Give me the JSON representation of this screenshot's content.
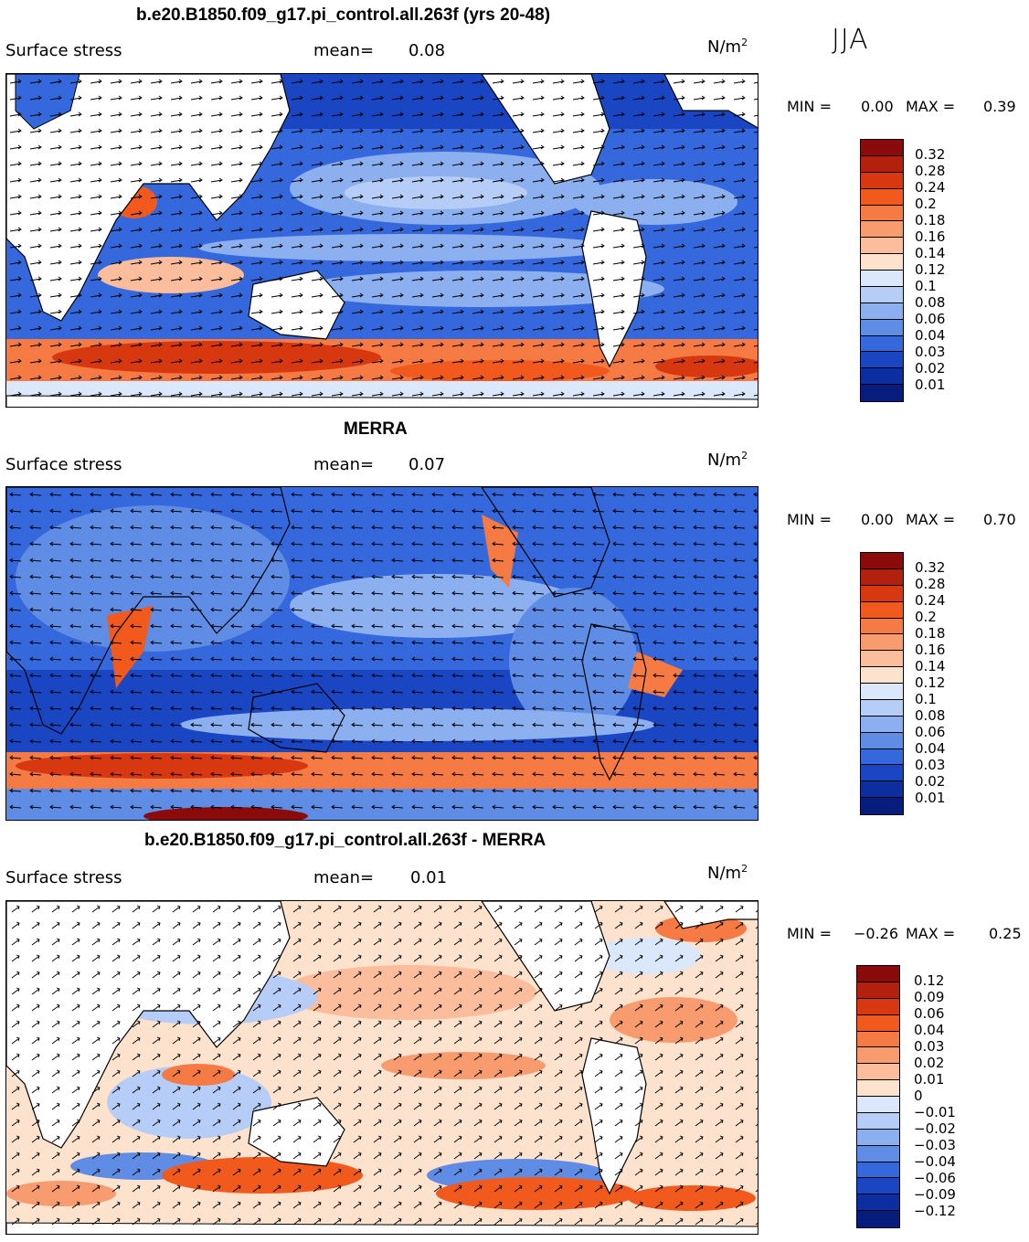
{
  "season": "JJA",
  "panels": [
    {
      "title": "b.e20.B1850.f09_g17.pi_control.all.263f (yrs 20-48)",
      "variable": "Surface stress",
      "mean_label": "mean=",
      "mean_value": "0.08",
      "unit": "N/m",
      "unit_sup": "2",
      "min_label": "MIN =",
      "min_value": "0.00",
      "max_label": "MAX =",
      "max_value": "0.39",
      "colorbar": {
        "labels": [
          "0.32",
          "0.28",
          "0.24",
          "0.2",
          "0.18",
          "0.16",
          "0.14",
          "0.12",
          "0.1",
          "0.08",
          "0.06",
          "0.04",
          "0.03",
          "0.02",
          "0.01"
        ],
        "colors": [
          "#8b0a0a",
          "#b3200d",
          "#d8380f",
          "#f25a1d",
          "#f57a44",
          "#f89b6e",
          "#fbbd9c",
          "#fde2cd",
          "#dbe8fb",
          "#b6cdf7",
          "#8bafef",
          "#5f8de5",
          "#3568dc",
          "#1a46c4",
          "#0d2ea0",
          "#071d7d"
        ]
      }
    },
    {
      "title": "MERRA",
      "variable": "Surface stress",
      "mean_label": "mean=",
      "mean_value": "0.07",
      "unit": "N/m",
      "unit_sup": "2",
      "min_label": "MIN =",
      "min_value": "0.00",
      "max_label": "MAX =",
      "max_value": "0.70",
      "colorbar": {
        "labels": [
          "0.32",
          "0.28",
          "0.24",
          "0.2",
          "0.18",
          "0.16",
          "0.14",
          "0.12",
          "0.1",
          "0.08",
          "0.06",
          "0.04",
          "0.03",
          "0.02",
          "0.01"
        ],
        "colors": [
          "#8b0a0a",
          "#b3200d",
          "#d8380f",
          "#f25a1d",
          "#f57a44",
          "#f89b6e",
          "#fbbd9c",
          "#fde2cd",
          "#dbe8fb",
          "#b6cdf7",
          "#8bafef",
          "#5f8de5",
          "#3568dc",
          "#1a46c4",
          "#0d2ea0",
          "#071d7d"
        ]
      }
    },
    {
      "title": "b.e20.B1850.f09_g17.pi_control.all.263f - MERRA",
      "variable": "Surface stress",
      "mean_label": "mean=",
      "mean_value": "0.01",
      "unit": "N/m",
      "unit_sup": "2",
      "min_label": "MIN =",
      "min_value": "−0.26",
      "max_label": "MAX =",
      "max_value": "0.25",
      "colorbar": {
        "labels": [
          "0.12",
          "0.09",
          "0.06",
          "0.04",
          "0.03",
          "0.02",
          "0.01",
          "0",
          "−0.01",
          "−0.02",
          "−0.03",
          "−0.04",
          "−0.06",
          "−0.09",
          "−0.12"
        ],
        "colors": [
          "#8b0a0a",
          "#b3200d",
          "#d8380f",
          "#f25a1d",
          "#f57a44",
          "#f89b6e",
          "#fbbd9c",
          "#fde2cd",
          "#dbe8fb",
          "#b6cdf7",
          "#8bafef",
          "#5f8de5",
          "#3568dc",
          "#1a46c4",
          "#0d2ea0",
          "#071d7d"
        ]
      }
    }
  ]
}
